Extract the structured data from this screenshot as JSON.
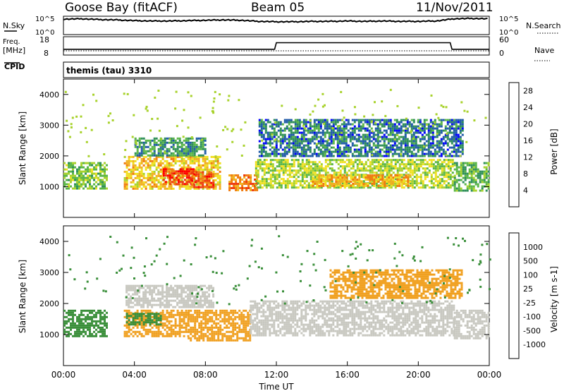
{
  "header": {
    "radar": "Goose Bay (fitACF)",
    "beam": "Beam 05",
    "date": "11/Nov/2011"
  },
  "noise_panel": {
    "left_label": "N.Sky",
    "right_label": "N.Search",
    "left_ticks": [
      "10^5",
      "10^0"
    ],
    "right_ticks": [
      "10^5",
      "10^0"
    ]
  },
  "freq_panel": {
    "left_label_1": "Freq.",
    "left_label_2": "[MHz]",
    "right_label": "Nave",
    "left_ticks": [
      "18",
      "8"
    ],
    "right_ticks": [
      "60",
      "0"
    ]
  },
  "cpid": {
    "label": "CPID",
    "value": "themis (tau) 3310"
  },
  "power_panel": {
    "ylabel": "Slant Range [km]",
    "yticks": [
      "4000",
      "3000",
      "2000",
      "1000"
    ],
    "colorbar_label": "Power [dB]",
    "colorbar_ticks": [
      "28",
      "24",
      "20",
      "16",
      "12",
      "8",
      "4"
    ],
    "colors": [
      "#0000ff",
      "#1f5aa8",
      "#2f8f59",
      "#5ab646",
      "#a8d22c",
      "#f0e020",
      "#f0b020",
      "#f07c10",
      "#ee3a10",
      "#ff0000"
    ]
  },
  "velocity_panel": {
    "ylabel": "Slant Range [km]",
    "yticks": [
      "4000",
      "3000",
      "2000",
      "1000"
    ],
    "colorbar_label": "Velocity [m s-1]",
    "colorbar_ticks": [
      "1000",
      "500",
      "100",
      "25",
      "-25",
      "-100",
      "-500",
      "-1000"
    ],
    "colors": [
      "#1a3cc8",
      "#2f6aa0",
      "#3a8f3a",
      "#7cc840",
      "#c8c8c0",
      "#c8c8c0",
      "#f0a020",
      "#f07010",
      "#ee2010"
    ]
  },
  "xaxis": {
    "label": "Time UT",
    "ticks": [
      "00:00",
      "04:00",
      "08:00",
      "12:00",
      "16:00",
      "20:00",
      "00:00"
    ]
  },
  "chart_data": [
    {
      "type": "line",
      "title": "N.Sky / N.Search",
      "x_hours": [
        0,
        1,
        2,
        3,
        4,
        5,
        6,
        7,
        8,
        9,
        10,
        11,
        12,
        13,
        14,
        15,
        16,
        17,
        18,
        19,
        20,
        21,
        22,
        23,
        24
      ],
      "series": [
        {
          "name": "N.Sky",
          "values_log10": [
            4.2,
            4.3,
            4.1,
            4.0,
            3.8,
            3.7,
            3.7,
            3.8,
            3.9,
            4.0,
            3.9,
            3.6,
            3.5,
            3.5,
            3.6,
            3.6,
            3.7,
            3.6,
            3.7,
            3.6,
            3.6,
            3.7,
            4.3,
            4.4,
            4.3
          ]
        }
      ]
    },
    {
      "type": "line",
      "title": "Freq. / Nave",
      "x_hours": [
        0,
        11.9,
        12.0,
        21.8,
        21.9,
        24
      ],
      "series": [
        {
          "name": "Freq.",
          "values": [
            10.9,
            10.9,
            14.6,
            14.6,
            10.9,
            10.9
          ]
        },
        {
          "name": "Nave",
          "values": [
            12,
            12,
            12,
            12,
            12,
            12
          ]
        }
      ]
    },
    {
      "type": "heatmap",
      "title": "Power [dB]",
      "x_range_hours": [
        0,
        24
      ],
      "y_range_km": [
        0,
        4500
      ],
      "regions": [
        {
          "x_start": 0.0,
          "x_end": 2.5,
          "y_min": 950,
          "y_max": 1800,
          "value": 12
        },
        {
          "x_start": 3.4,
          "x_end": 8.8,
          "y_min": 950,
          "y_max": 2000,
          "value": 18
        },
        {
          "x_start": 5.6,
          "x_end": 7.4,
          "y_min": 1100,
          "y_max": 1600,
          "value": 26
        },
        {
          "x_start": 7.2,
          "x_end": 8.4,
          "y_min": 950,
          "y_max": 1500,
          "value": 24
        },
        {
          "x_start": 9.3,
          "x_end": 10.9,
          "y_min": 850,
          "y_max": 1400,
          "value": 22
        },
        {
          "x_start": 4.0,
          "x_end": 8.0,
          "y_min": 2000,
          "y_max": 2600,
          "value": 8
        },
        {
          "x_start": 10.8,
          "x_end": 22.0,
          "y_min": 1000,
          "y_max": 1900,
          "value": 14
        },
        {
          "x_start": 14.0,
          "x_end": 19.5,
          "y_min": 1000,
          "y_max": 1400,
          "value": 20
        },
        {
          "x_start": 22.0,
          "x_end": 24.0,
          "y_min": 900,
          "y_max": 1800,
          "value": 10
        },
        {
          "x_start": 11.0,
          "x_end": 22.5,
          "y_min": 2000,
          "y_max": 3200,
          "value": 6
        }
      ]
    },
    {
      "type": "heatmap",
      "title": "Velocity [m s-1]",
      "x_range_hours": [
        0,
        24
      ],
      "y_range_km": [
        0,
        4500
      ],
      "regions": [
        {
          "x_start": 0.0,
          "x_end": 2.5,
          "y_min": 950,
          "y_max": 1800,
          "value": 100
        },
        {
          "x_start": 3.4,
          "x_end": 7.0,
          "y_min": 950,
          "y_max": 1800,
          "value": -100
        },
        {
          "x_start": 3.4,
          "x_end": 5.5,
          "y_min": 1300,
          "y_max": 1700,
          "value": 200
        },
        {
          "x_start": 7.0,
          "x_end": 10.5,
          "y_min": 800,
          "y_max": 1800,
          "value": -150
        },
        {
          "x_start": 3.5,
          "x_end": 8.5,
          "y_min": 1900,
          "y_max": 2600,
          "value": 0
        },
        {
          "x_start": 10.5,
          "x_end": 22.0,
          "y_min": 1000,
          "y_max": 2100,
          "value": 0
        },
        {
          "x_start": 22.0,
          "x_end": 24.0,
          "y_min": 900,
          "y_max": 1800,
          "value": 0
        },
        {
          "x_start": 15.0,
          "x_end": 22.5,
          "y_min": 2200,
          "y_max": 3100,
          "value": -150
        }
      ]
    }
  ]
}
